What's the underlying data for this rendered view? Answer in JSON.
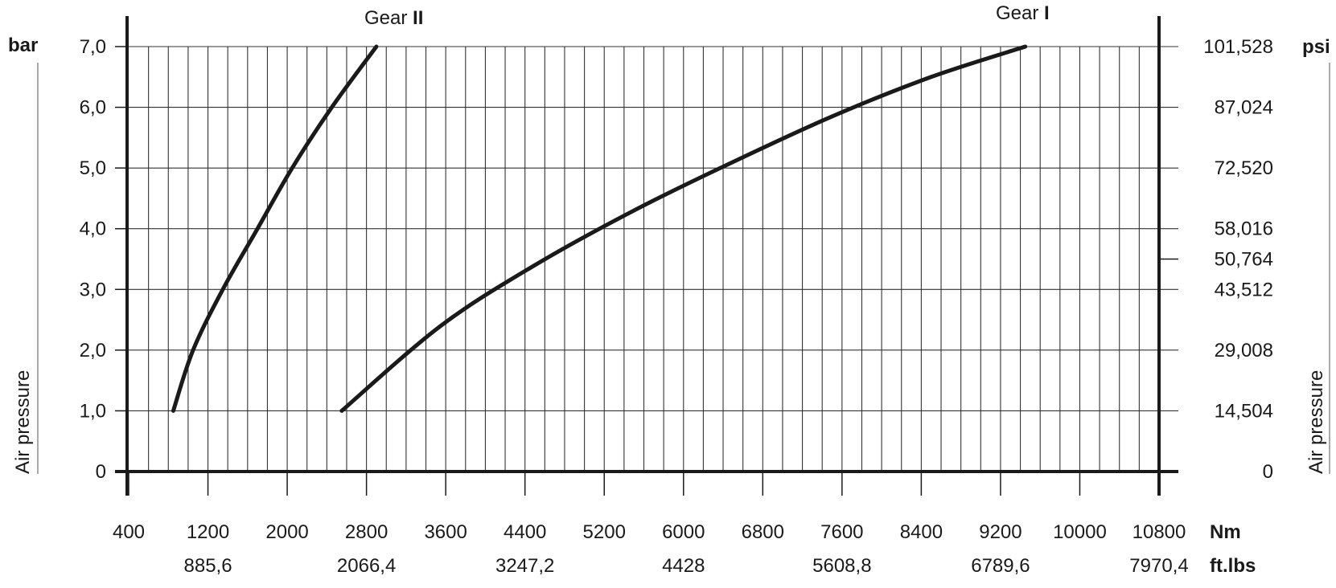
{
  "chart_data": {
    "type": "line",
    "xlim": [
      400,
      10800
    ],
    "ylim": [
      0,
      7.0
    ],
    "grid": true,
    "x_minor_step": 200,
    "x_ticks": [
      "400",
      "1200",
      "2000",
      "2800",
      "3600",
      "4400",
      "5200",
      "6000",
      "6800",
      "7600",
      "8400",
      "9200",
      "10000",
      "10800"
    ],
    "x_unit": "Nm",
    "x2_ticks": [
      {
        "x": 1200,
        "label": "885,6"
      },
      {
        "x": 2800,
        "label": "2066,4"
      },
      {
        "x": 4400,
        "label": "3247,2"
      },
      {
        "x": 6000,
        "label": "4428"
      },
      {
        "x": 7600,
        "label": "5608,8"
      },
      {
        "x": 9200,
        "label": "6789,6"
      },
      {
        "x": 10800,
        "label": "7970,4"
      }
    ],
    "x2_unit": "ft.lbs",
    "y_ticks": [
      {
        "y": 0,
        "label": "0"
      },
      {
        "y": 1,
        "label": "1,0"
      },
      {
        "y": 2,
        "label": "2,0"
      },
      {
        "y": 3,
        "label": "3,0"
      },
      {
        "y": 4,
        "label": "4,0"
      },
      {
        "y": 5,
        "label": "5,0"
      },
      {
        "y": 6,
        "label": "6,0"
      },
      {
        "y": 7,
        "label": "7,0"
      }
    ],
    "y_unit": "bar",
    "y2_ticks": [
      {
        "y": 0,
        "label": "0"
      },
      {
        "y": 1,
        "label": "14,504"
      },
      {
        "y": 2,
        "label": "29,008"
      },
      {
        "y": 3,
        "label": "43,512"
      },
      {
        "y": 3.5,
        "label": "50,764"
      },
      {
        "y": 4,
        "label": "58,016"
      },
      {
        "y": 5,
        "label": "72,520"
      },
      {
        "y": 6,
        "label": "87,024"
      },
      {
        "y": 7,
        "label": "101,528"
      }
    ],
    "y2_unit": "psi",
    "ylabel": "Air pressure",
    "y2label": "Air pressure",
    "series": [
      {
        "label_text": "Gear",
        "label_roman": "II",
        "points": [
          [
            850,
            1.0
          ],
          [
            1050,
            2.0
          ],
          [
            1350,
            3.0
          ],
          [
            1700,
            4.0
          ],
          [
            2050,
            5.0
          ],
          [
            2450,
            6.0
          ],
          [
            2900,
            7.0
          ]
        ]
      },
      {
        "label_text": "Gear",
        "label_roman": "I",
        "points": [
          [
            2550,
            1.0
          ],
          [
            3550,
            2.4
          ],
          [
            4500,
            3.4
          ],
          [
            5500,
            4.3
          ],
          [
            6500,
            5.1
          ],
          [
            7500,
            5.85
          ],
          [
            8500,
            6.5
          ],
          [
            9450,
            7.0
          ]
        ]
      }
    ]
  }
}
